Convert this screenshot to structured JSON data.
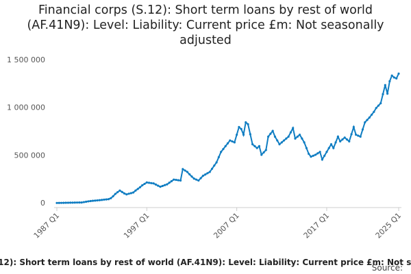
{
  "chart_data": {
    "type": "line",
    "title": "Financial corps (S.12): Short term loans by rest of world (AF.41N9): Level: Liability: Current price £m: Not seasonally adjusted",
    "source_label": "Source:",
    "categories": [
      "1987 Q1",
      null,
      null,
      null,
      null,
      null,
      null,
      null,
      null,
      null,
      null,
      null,
      null,
      null,
      null,
      null,
      null,
      null,
      null,
      null,
      null,
      null,
      null,
      null,
      null,
      null,
      null,
      null,
      null,
      null,
      null,
      null,
      null,
      null,
      null,
      null,
      null,
      null,
      null,
      null,
      "1997 Q1",
      null,
      null,
      null,
      null,
      null,
      null,
      null,
      null,
      null,
      null,
      null,
      null,
      null,
      null,
      null,
      null,
      null,
      null,
      null,
      null,
      null,
      null,
      null,
      null,
      null,
      null,
      null,
      null,
      null,
      null,
      null,
      null,
      null,
      null,
      null,
      null,
      null,
      null,
      null,
      "2007 Q1",
      null,
      null,
      null,
      null,
      null,
      null,
      null,
      null,
      null,
      null,
      null,
      null,
      null,
      null,
      null,
      null,
      null,
      null,
      null,
      null,
      null,
      null,
      null,
      null,
      null,
      null,
      null,
      null,
      null,
      null,
      null,
      null,
      null,
      null,
      null,
      null,
      null,
      null,
      null,
      "2017 Q1",
      null,
      null,
      null,
      null,
      null,
      null,
      null,
      null,
      null,
      null,
      null,
      null,
      null,
      null,
      null,
      null,
      null,
      null,
      null,
      null,
      null,
      null,
      null,
      null,
      null,
      null,
      null,
      null,
      null,
      null,
      null,
      "2025 Q1"
    ],
    "series": [
      {
        "name": "Short term loans by rest of world",
        "color": "#0f7dc2",
        "values": [
          5000,
          5500,
          6000,
          6500,
          7000,
          7500,
          8000,
          8500,
          9000,
          9500,
          10000,
          10000,
          14000,
          18000,
          22000,
          25000,
          28000,
          30000,
          32000,
          34000,
          37000,
          40000,
          42000,
          45000,
          55000,
          75000,
          100000,
          118000,
          135000,
          120000,
          105000,
          95000,
          102000,
          108000,
          115000,
          135000,
          152000,
          170000,
          190000,
          205000,
          220000,
          216000,
          213000,
          210000,
          198000,
          186000,
          175000,
          183000,
          192000,
          200000,
          217000,
          233000,
          250000,
          247000,
          243000,
          240000,
          360000,
          345000,
          330000,
          305000,
          282000,
          260000,
          250000,
          240000,
          265000,
          290000,
          303000,
          317000,
          330000,
          363000,
          397000,
          430000,
          485000,
          540000,
          570000,
          600000,
          630000,
          660000,
          650000,
          640000,
          720000,
          800000,
          780000,
          720000,
          850000,
          830000,
          725000,
          620000,
          600000,
          580000,
          600000,
          510000,
          535000,
          560000,
          700000,
          730000,
          760000,
          700000,
          660000,
          620000,
          640000,
          660000,
          680000,
          700000,
          745000,
          790000,
          680000,
          700000,
          720000,
          680000,
          640000,
          580000,
          520000,
          490000,
          500000,
          510000,
          525000,
          540000,
          460000,
          500000,
          540000,
          580000,
          620000,
          580000,
          640000,
          700000,
          650000,
          670000,
          690000,
          670000,
          650000,
          725000,
          800000,
          720000,
          710000,
          700000,
          775000,
          850000,
          875000,
          900000,
          930000,
          960000,
          1000000,
          1025000,
          1050000,
          1145000,
          1240000,
          1150000,
          1280000,
          1340000,
          1320000,
          1310000,
          1360000
        ]
      }
    ],
    "ylim": [
      0,
      1500000
    ],
    "yticks": [
      0,
      {
        "value": 500000,
        "label": "500 000"
      },
      {
        "value": 1000000,
        "label": "1 000 000"
      },
      {
        "value": 1500000,
        "label": "1 500 000"
      }
    ],
    "grid": false
  }
}
